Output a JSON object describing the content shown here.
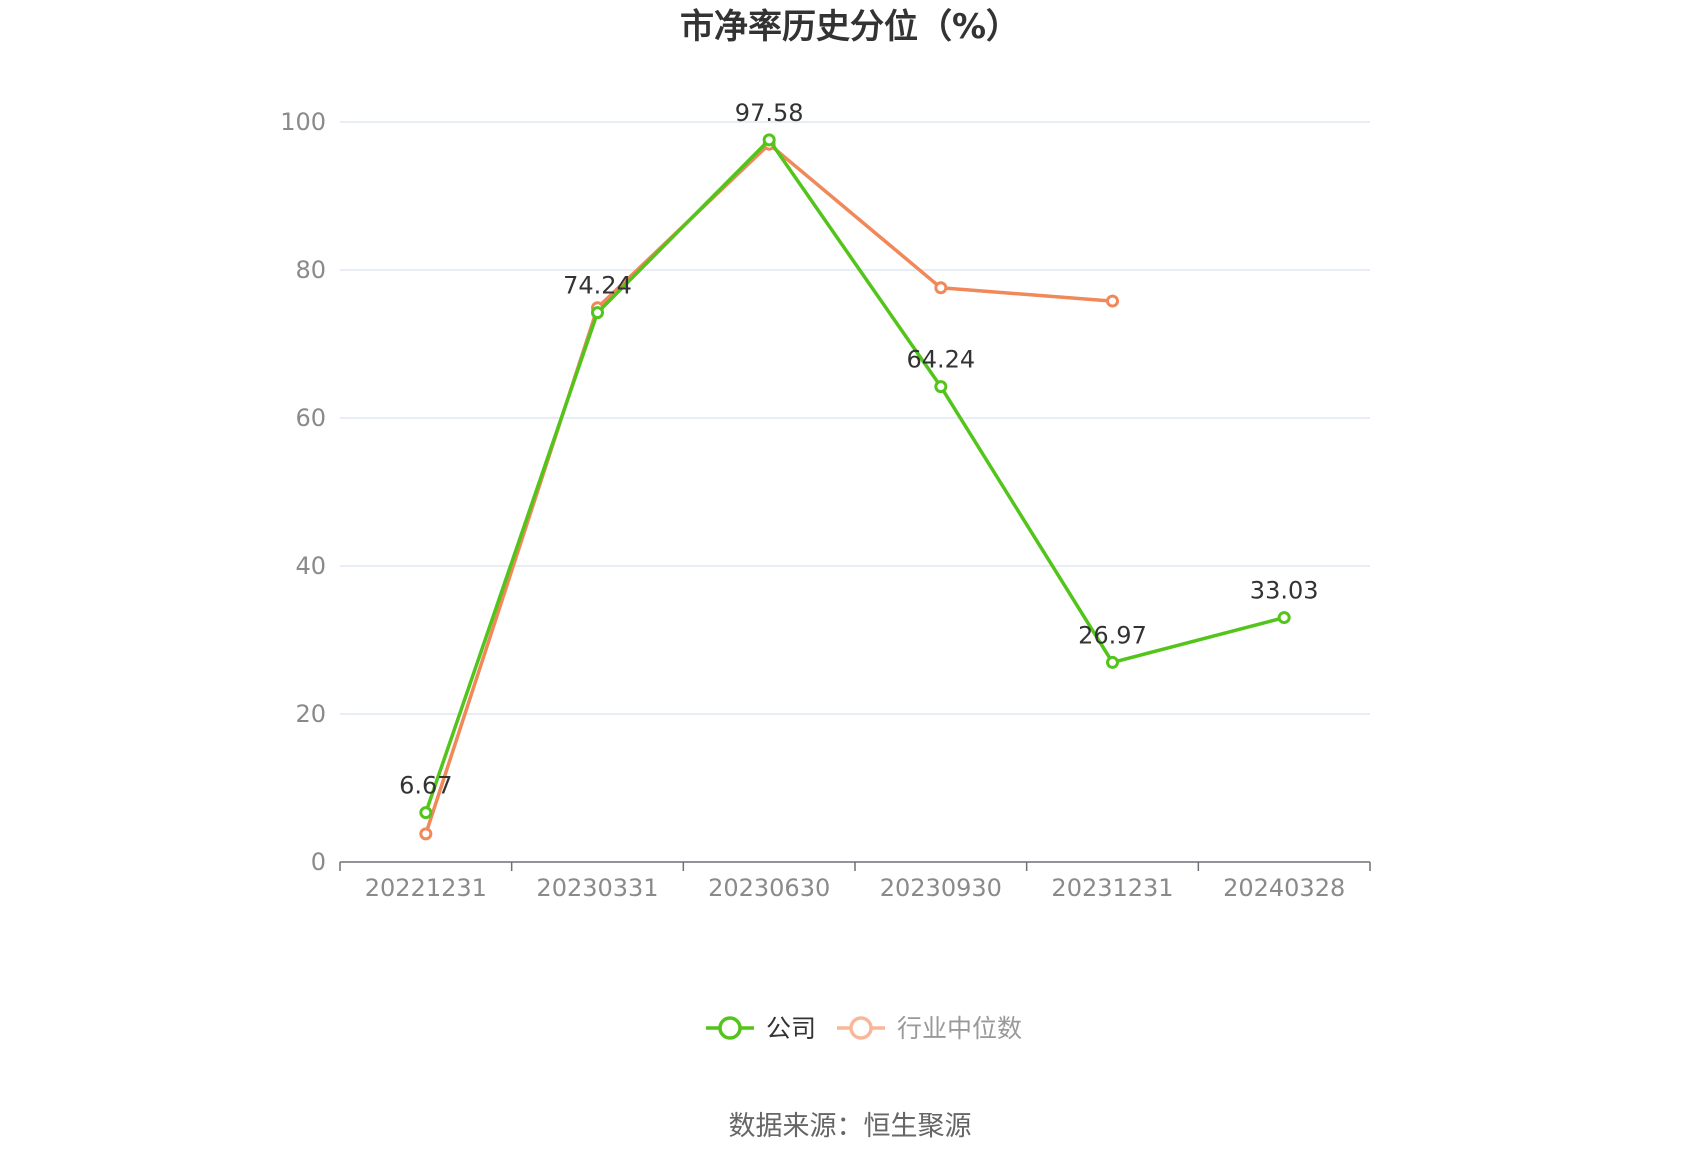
{
  "chart_data": {
    "type": "line",
    "title": "市净率历史分位（%）",
    "categories": [
      "20221231",
      "20230331",
      "20230630",
      "20230930",
      "20231231",
      "20240328"
    ],
    "ylim": [
      0,
      100
    ],
    "yticks": [
      0,
      20,
      40,
      60,
      80,
      100
    ],
    "grid": true,
    "legend_position": "bottom",
    "series": [
      {
        "name": "公司",
        "color": "#52c41a",
        "values": [
          6.67,
          74.24,
          97.58,
          64.24,
          26.97,
          33.03
        ],
        "show_labels": true
      },
      {
        "name": "行业中位数",
        "color": "#f0885a",
        "values": [
          3.8,
          74.9,
          97.0,
          77.6,
          75.8,
          null
        ],
        "show_labels": false
      }
    ]
  },
  "source_text": "数据来源：恒生聚源"
}
